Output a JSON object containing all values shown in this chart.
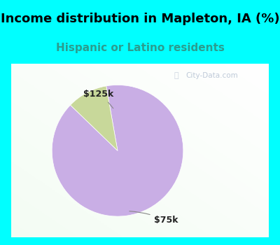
{
  "title": "Income distribution in Mapleton, IA (%)",
  "subtitle": "Hispanic or Latino residents",
  "title_color": "#000000",
  "subtitle_color": "#2a9d8f",
  "border_color": "#00ffff",
  "chart_bg_top": "#f0ffff",
  "chart_bg_bottom": "#d4f0d4",
  "slices": [
    {
      "label": "$75k",
      "value": 90,
      "color": "#c9aee5"
    },
    {
      "label": "$125k",
      "value": 10,
      "color": "#c8d89a"
    }
  ],
  "watermark": "City-Data.com",
  "title_fontsize": 13,
  "subtitle_fontsize": 11,
  "label_fontsize": 9,
  "border_thickness": 0.05
}
